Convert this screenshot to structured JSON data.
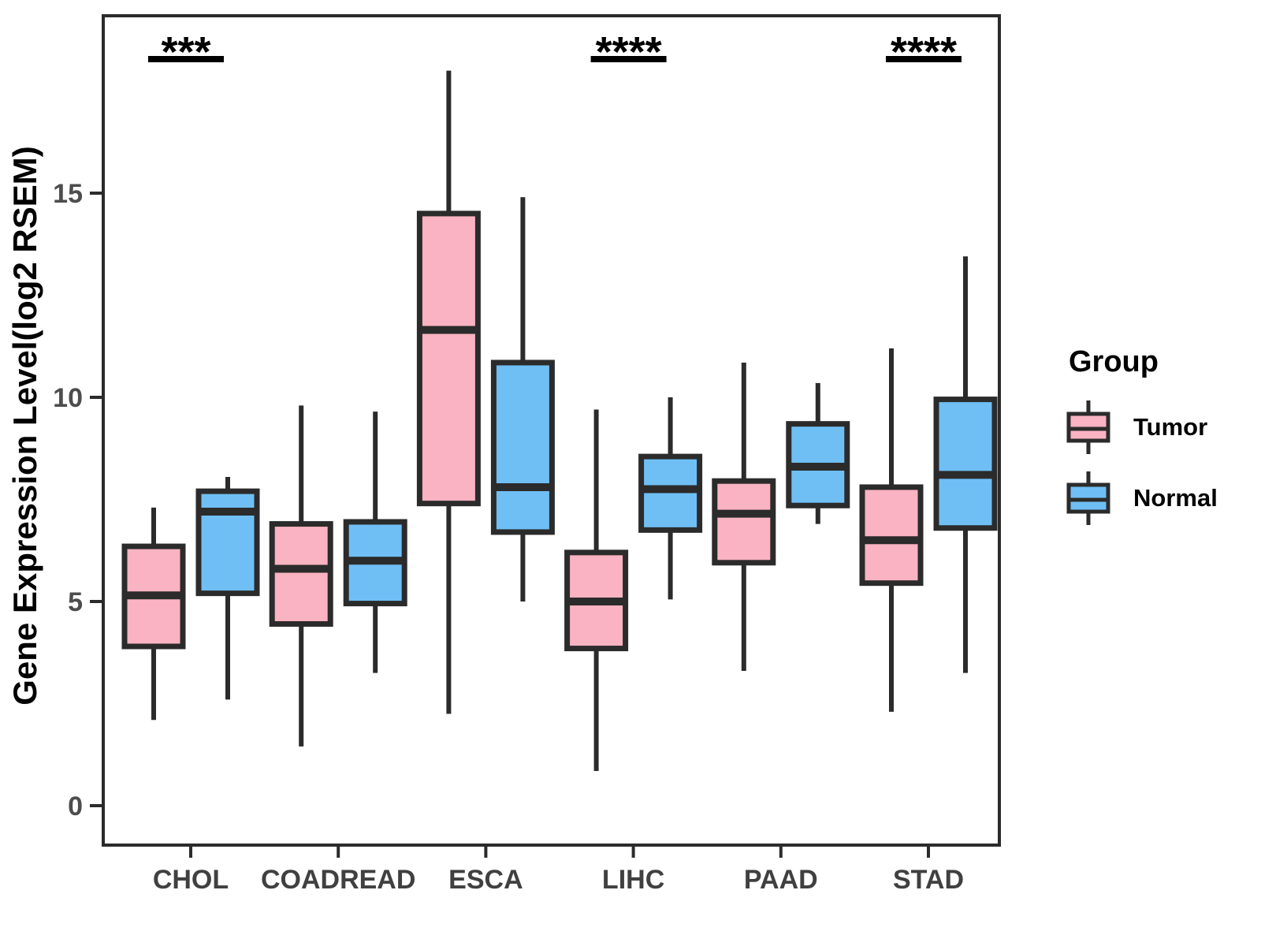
{
  "figure": {
    "kind": "grouped boxplot",
    "background": "#ffffff"
  },
  "colors": {
    "tumor_fill": "#FAB3C2",
    "normal_fill": "#6FBFF5",
    "box_border": "#2B2B2B",
    "axis_line": "#2B2B2B",
    "y_tick_label": "#4D4D4D",
    "x_tick_label": "#404040",
    "axis_title": "#000000",
    "significance": "#000000"
  },
  "legend": {
    "title": "Group",
    "items": [
      {
        "label": "Tumor",
        "color": "#FAB3C2"
      },
      {
        "label": "Normal",
        "color": "#6FBFF5"
      }
    ]
  },
  "chart_data": {
    "type": "boxplot",
    "title": "",
    "xlabel": "",
    "ylabel": "Gene Expression Level(log2 RSEM)",
    "categories": [
      "CHOL",
      "COADREAD",
      "ESCA",
      "LIHC",
      "PAAD",
      "STAD"
    ],
    "groups": [
      "Tumor",
      "Normal"
    ],
    "yticks": [
      0,
      5,
      10,
      15
    ],
    "ylim": [
      -1.0,
      19.4
    ],
    "grid": false,
    "legend_position": "right",
    "series": [
      {
        "name": "Tumor",
        "color": "#FAB3C2",
        "boxes": [
          {
            "category": "CHOL",
            "whisker_low": 2.1,
            "q1": 3.9,
            "median": 5.15,
            "q3": 6.35,
            "whisker_high": 7.3
          },
          {
            "category": "COADREAD",
            "whisker_low": 1.45,
            "q1": 4.45,
            "median": 5.8,
            "q3": 6.9,
            "whisker_high": 9.8
          },
          {
            "category": "ESCA",
            "whisker_low": 2.25,
            "q1": 7.4,
            "median": 11.65,
            "q3": 14.5,
            "whisker_high": 18.0
          },
          {
            "category": "LIHC",
            "whisker_low": 0.85,
            "q1": 3.85,
            "median": 5.0,
            "q3": 6.2,
            "whisker_high": 9.7
          },
          {
            "category": "PAAD",
            "whisker_low": 3.3,
            "q1": 5.95,
            "median": 7.15,
            "q3": 7.95,
            "whisker_high": 10.85
          },
          {
            "category": "STAD",
            "whisker_low": 2.3,
            "q1": 5.45,
            "median": 6.5,
            "q3": 7.8,
            "whisker_high": 11.2
          }
        ]
      },
      {
        "name": "Normal",
        "color": "#6FBFF5",
        "boxes": [
          {
            "category": "CHOL",
            "whisker_low": 2.6,
            "q1": 5.2,
            "median": 7.2,
            "q3": 7.7,
            "whisker_high": 8.05
          },
          {
            "category": "COADREAD",
            "whisker_low": 3.25,
            "q1": 4.95,
            "median": 6.0,
            "q3": 6.95,
            "whisker_high": 9.65
          },
          {
            "category": "ESCA",
            "whisker_low": 5.0,
            "q1": 6.7,
            "median": 7.8,
            "q3": 10.85,
            "whisker_high": 14.9
          },
          {
            "category": "LIHC",
            "whisker_low": 5.05,
            "q1": 6.75,
            "median": 7.75,
            "q3": 8.55,
            "whisker_high": 10.0
          },
          {
            "category": "PAAD",
            "whisker_low": 6.9,
            "q1": 7.35,
            "median": 8.3,
            "q3": 9.35,
            "whisker_high": 10.35
          },
          {
            "category": "STAD",
            "whisker_low": 3.25,
            "q1": 6.8,
            "median": 8.1,
            "q3": 9.95,
            "whisker_high": 13.45
          }
        ]
      }
    ],
    "significance": [
      {
        "category": "CHOL",
        "label": "***"
      },
      {
        "category": "LIHC",
        "label": "****"
      },
      {
        "category": "STAD",
        "label": "****"
      }
    ]
  }
}
